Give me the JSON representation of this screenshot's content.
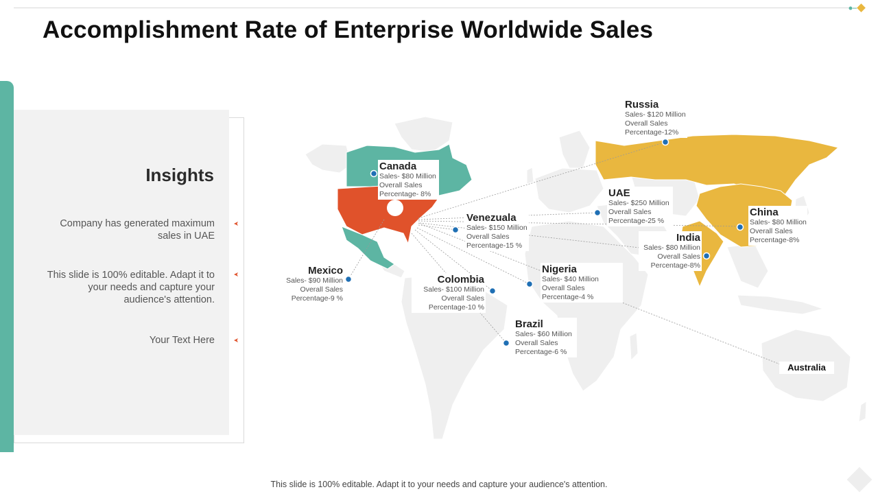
{
  "title": "Accomplishment Rate of Enterprise Worldwide Sales",
  "insights": {
    "heading": "Insights",
    "points": [
      "Company has generated maximum sales in UAE",
      "This slide is 100% editable. Adapt it to your needs and capture your audience's attention.",
      "Your Text Here"
    ]
  },
  "countries": {
    "russia": {
      "name": "Russia",
      "l1": "Sales- $120 Million",
      "l2": "Overall Sales",
      "l3": "Percentage-12%"
    },
    "canada": {
      "name": "Canada",
      "l1": "Sales- $80 Million",
      "l2": "Overall Sales",
      "l3": "Percentage- 8%"
    },
    "uae": {
      "name": "UAE",
      "l1": "Sales- $250 Million",
      "l2": "Overall Sales",
      "l3": "Percentage-25 %"
    },
    "china": {
      "name": "China",
      "l1": "Sales- $80 Million",
      "l2": "Overall Sales",
      "l3": "Percentage-8%"
    },
    "venezuala": {
      "name": "Venezuala",
      "l1": "Sales- $150 Million",
      "l2": "Overall Sales",
      "l3": "Percentage-15 %"
    },
    "india": {
      "name": "India",
      "l1": "Sales- $80 Million",
      "l2": "Overall Sales",
      "l3": "Percentage-8%"
    },
    "mexico": {
      "name": "Mexico",
      "l1": "Sales- $90 Million",
      "l2": "Overall Sales",
      "l3": "Percentage-9 %"
    },
    "nigeria": {
      "name": "Nigeria",
      "l1": "Sales- $40 Million",
      "l2": "Overall Sales",
      "l3": "Percentage-4 %"
    },
    "colombia": {
      "name": "Colombia",
      "l1": "Sales- $100 Million",
      "l2": "Overall Sales",
      "l3": "Percentage-10 %"
    },
    "brazil": {
      "name": "Brazil",
      "l1": "Sales- $60 Million",
      "l2": "Overall Sales",
      "l3": "Percentage-6 %"
    },
    "australia": {
      "name": "Australia"
    }
  },
  "footer": "This slide is 100% editable. Adapt it to your needs and capture your audience's attention.",
  "colors": {
    "teal": "#5db5a3",
    "orange": "#e0522b",
    "yellow": "#e9b73f",
    "land": "#efefef"
  }
}
